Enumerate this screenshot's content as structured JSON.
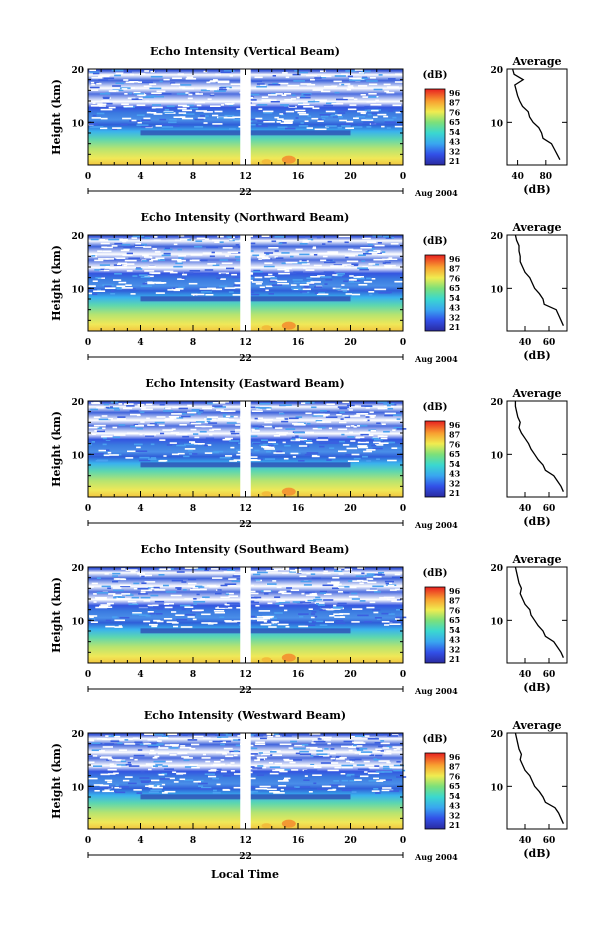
{
  "chart_data": {
    "type": "heatmap",
    "common": {
      "xlabel": "Local Time",
      "x_ticks": [
        "0",
        "4",
        "8",
        "12",
        "16",
        "20",
        "0"
      ],
      "date_day": "22",
      "date_label": "Aug 2004",
      "ylabel": "Height (km)",
      "y_ticks": [
        "20",
        "10"
      ],
      "ylim": [
        2,
        20
      ],
      "xlim": [
        0,
        24
      ],
      "data_gap_hours": [
        11.6,
        12.4
      ],
      "colorbar_unit": "(dB)",
      "colorbar_ticks": [
        "96",
        "87",
        "76",
        "65",
        "54",
        "43",
        "32",
        "21"
      ],
      "avg_title": "Average",
      "avg_xlabel": "(dB)",
      "avg_y_ticks": [
        "20",
        "10"
      ]
    },
    "panels": [
      {
        "title": "Echo Intensity (Vertical Beam)",
        "avg_xticks": [
          "40",
          "80"
        ],
        "avg_xlim": [
          25,
          110
        ],
        "avg_profile": {
          "height": [
            3,
            4,
            5,
            6,
            7,
            8,
            9,
            10,
            11,
            12,
            13,
            14,
            15,
            16,
            17,
            18,
            19,
            20
          ],
          "value": [
            100,
            96,
            92,
            88,
            76,
            74,
            70,
            62,
            57,
            55,
            47,
            43,
            40,
            38,
            36,
            48,
            35,
            33
          ]
        }
      },
      {
        "title": "Echo Intensity (Northward Beam)",
        "avg_xticks": [
          "40",
          "60"
        ],
        "avg_xlim": [
          25,
          75
        ],
        "avg_profile": {
          "height": [
            3,
            4,
            5,
            6,
            7,
            8,
            9,
            10,
            11,
            12,
            13,
            14,
            15,
            16,
            17,
            18,
            19,
            20
          ],
          "value": [
            72,
            70,
            68,
            66,
            56,
            55,
            52,
            48,
            46,
            44,
            40,
            38,
            36,
            36,
            35,
            35,
            33,
            32
          ]
        }
      },
      {
        "title": "Echo Intensity (Eastward Beam)",
        "avg_xticks": [
          "40",
          "60"
        ],
        "avg_xlim": [
          25,
          75
        ],
        "avg_profile": {
          "height": [
            3,
            4,
            5,
            6,
            7,
            8,
            9,
            10,
            11,
            12,
            13,
            14,
            15,
            16,
            17,
            18,
            19,
            20
          ],
          "value": [
            72,
            70,
            67,
            64,
            57,
            55,
            51,
            48,
            45,
            43,
            40,
            37,
            35,
            36,
            34,
            33,
            32,
            32
          ]
        }
      },
      {
        "title": "Echo Intensity (Southward Beam)",
        "avg_xticks": [
          "40",
          "60"
        ],
        "avg_xlim": [
          25,
          75
        ],
        "avg_profile": {
          "height": [
            3,
            4,
            5,
            6,
            7,
            8,
            9,
            10,
            11,
            12,
            13,
            14,
            15,
            16,
            17,
            18,
            19,
            20
          ],
          "value": [
            72,
            70,
            67,
            64,
            57,
            55,
            51,
            48,
            45,
            44,
            40,
            38,
            36,
            37,
            35,
            34,
            33,
            32
          ]
        }
      },
      {
        "title": "Echo Intensity (Westward Beam)",
        "avg_xticks": [
          "40",
          "60"
        ],
        "avg_xlim": [
          25,
          75
        ],
        "avg_profile": {
          "height": [
            3,
            4,
            5,
            6,
            7,
            8,
            9,
            10,
            11,
            12,
            13,
            14,
            15,
            16,
            17,
            18,
            19,
            20
          ],
          "value": [
            72,
            70,
            68,
            65,
            57,
            55,
            52,
            48,
            46,
            44,
            40,
            38,
            36,
            37,
            35,
            34,
            33,
            32
          ]
        }
      }
    ]
  }
}
